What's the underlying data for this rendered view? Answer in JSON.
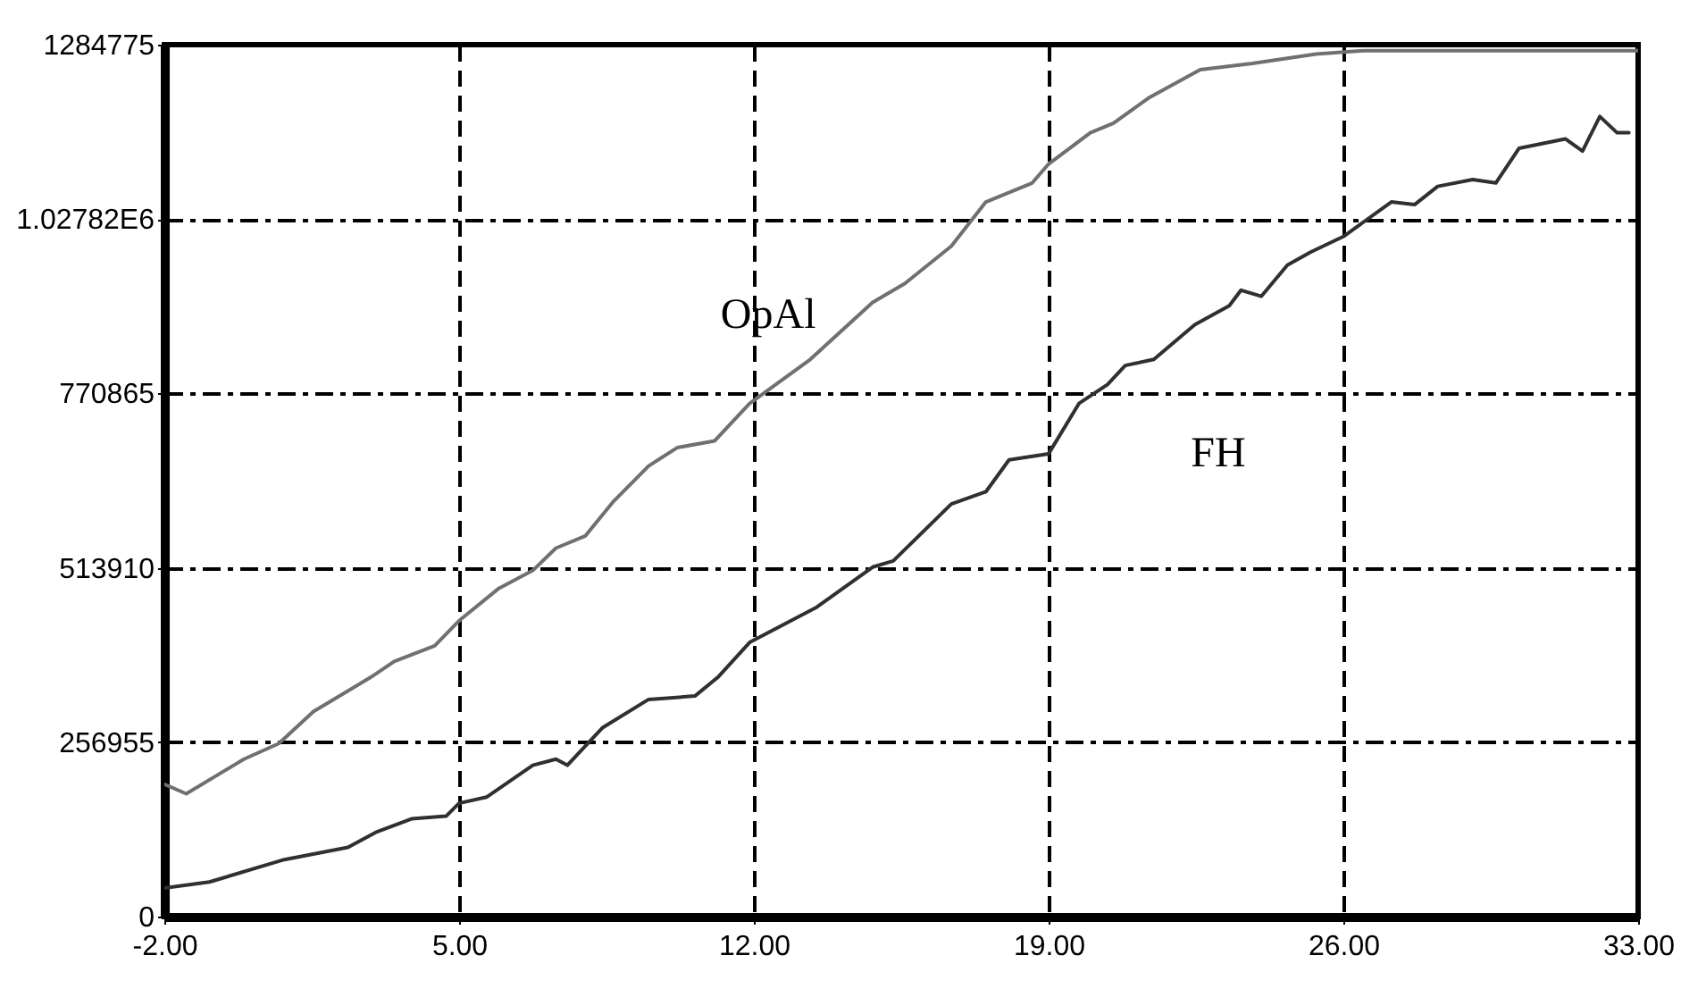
{
  "chart_data": {
    "type": "line",
    "xlim": [
      -2,
      33
    ],
    "ylim": [
      0,
      1284775
    ],
    "xticks": [
      {
        "value": -2,
        "label": "-2.00"
      },
      {
        "value": 5,
        "label": "5.00"
      },
      {
        "value": 12,
        "label": "12.00"
      },
      {
        "value": 19,
        "label": "19.00"
      },
      {
        "value": 26,
        "label": "26.00"
      },
      {
        "value": 33,
        "label": "33.00"
      }
    ],
    "yticks": [
      0,
      256955,
      513910,
      770865,
      {
        "value": 1027820,
        "label": "1.02782E6"
      },
      1284775
    ],
    "grid": true,
    "line_style": "solid",
    "series": [
      {
        "name": "OpAl",
        "color": "#707070",
        "x": [
          -2,
          -1.48,
          -0.11,
          0.72,
          1.54,
          2.91,
          3.46,
          4.42,
          5,
          5.93,
          6.75,
          7.3,
          8,
          8.67,
          9.5,
          10.18,
          11.07,
          11.9,
          13.34,
          14.82,
          15.59,
          16.69,
          17.51,
          18.61,
          19,
          19.99,
          20.54,
          21.37,
          22.6,
          23.84,
          25.35,
          26.5,
          33
        ],
        "values": [
          195000,
          181000,
          232000,
          255000,
          302000,
          353000,
          376000,
          399000,
          436000,
          483000,
          510000,
          543000,
          561000,
          612000,
          664000,
          691000,
          701000,
          756000,
          821000,
          905000,
          933000,
          988000,
          1053000,
          1081000,
          1109000,
          1155000,
          1169000,
          1206000,
          1248000,
          1257000,
          1271000,
          1276000,
          1276000
        ]
      },
      {
        "name": "FH",
        "color": "#303030",
        "x": [
          -2,
          -0.93,
          0.85,
          2.36,
          3.05,
          3.87,
          4.69,
          5,
          5.65,
          6.75,
          7.3,
          7.57,
          8.4,
          9.5,
          10.6,
          11.15,
          11.9,
          13.47,
          14.82,
          15.31,
          16.69,
          17.51,
          18.06,
          19,
          19.72,
          20.4,
          20.82,
          21.5,
          22.47,
          23.29,
          23.57,
          24.05,
          24.67,
          25.22,
          26,
          27.14,
          27.69,
          28.24,
          29.07,
          29.62,
          30.17,
          31.27,
          31.68,
          32.09,
          32.5,
          32.78
        ],
        "values": [
          42000,
          51000,
          84000,
          102000,
          125000,
          144000,
          148000,
          167000,
          176000,
          223000,
          232000,
          223000,
          278000,
          320000,
          325000,
          353000,
          404000,
          455000,
          515000,
          524000,
          608000,
          626000,
          673000,
          682000,
          756000,
          784000,
          812000,
          821000,
          872000,
          900000,
          923000,
          914000,
          960000,
          979000,
          1002000,
          1053000,
          1049000,
          1076000,
          1086000,
          1081000,
          1132000,
          1146000,
          1128000,
          1179000,
          1155000,
          1155000
        ]
      }
    ]
  }
}
